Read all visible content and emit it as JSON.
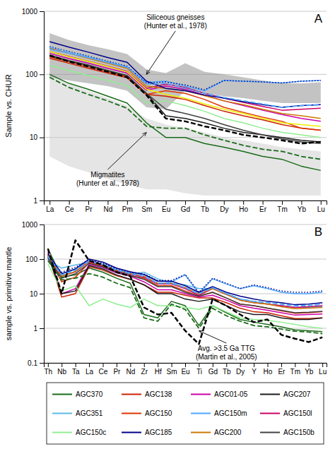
{
  "chart_data": [
    {
      "type": "line",
      "title": "A",
      "ylabel": "Sample vs. CHUR",
      "categories": [
        "La",
        "Ce",
        "Pr",
        "Nd",
        "Pm",
        "Sm",
        "Eu",
        "Gd",
        "Tb",
        "Dy",
        "Ho",
        "Er",
        "Tm",
        "Yb",
        "Lu"
      ],
      "log": "y",
      "ylim": [
        1,
        1000
      ],
      "yticks": [
        1,
        10,
        100,
        1000
      ],
      "grid": "y",
      "annotations": [
        {
          "text": "Siliceous gneisses\n(Hunter et al., 1978)"
        },
        {
          "text": "Migmatites\n(Hunter et al., 1978)"
        }
      ],
      "series": [
        {
          "type": "area",
          "color": "#888888",
          "values": [
            450,
            350,
            290,
            250,
            210,
            120,
            105,
            150,
            110,
            100,
            90,
            80,
            72,
            72,
            75
          ],
          "lower": [
            90,
            80,
            72,
            65,
            55,
            30,
            28,
            55,
            50,
            45,
            42,
            38,
            35,
            35,
            35
          ]
        },
        {
          "type": "area",
          "color": "#cccccc",
          "values": [
            100,
            70,
            55,
            42,
            32,
            20,
            16,
            14,
            12,
            10,
            9,
            8,
            7,
            6.5,
            6
          ],
          "lower": [
            5,
            3.5,
            2.8,
            2.2,
            1.8,
            1.5,
            1.5,
            1.3,
            1.2,
            1.2,
            1.2,
            1.2,
            1.2,
            1.2,
            1.2
          ]
        },
        {
          "type": "line",
          "color": "#1a6b1a",
          "line_style": "solid",
          "values": [
            100,
            72,
            58,
            45,
            35,
            17,
            10,
            10,
            8,
            7,
            6,
            5,
            4.5,
            3.5,
            3
          ]
        },
        {
          "type": "line",
          "color": "#1a1a1a",
          "line_style": "solid",
          "values": [
            200,
            165,
            140,
            115,
            95,
            50,
            22,
            20,
            17,
            14,
            12,
            11,
            10,
            9,
            8.5
          ]
        },
        {
          "type": "line",
          "color": "#cc2200",
          "line_style": "solid",
          "values": [
            180,
            150,
            125,
            105,
            88,
            48,
            45,
            40,
            32,
            26,
            22,
            19,
            16,
            14,
            13
          ]
        },
        {
          "type": "line",
          "color": "#dd3300",
          "line_style": "solid",
          "values": [
            190,
            158,
            132,
            110,
            92,
            48,
            55,
            50,
            40,
            30,
            25,
            21,
            18,
            14,
            13
          ]
        },
        {
          "type": "line",
          "color": "#cc00aa",
          "line_style": "solid",
          "values": [
            215,
            178,
            150,
            125,
            105,
            56,
            65,
            58,
            47,
            38,
            32,
            27,
            23,
            20,
            18
          ]
        },
        {
          "type": "line",
          "color": "#cc0066",
          "line_style": "solid",
          "values": [
            230,
            192,
            162,
            135,
            112,
            60,
            70,
            62,
            50,
            42,
            36,
            31,
            27,
            28,
            29
          ]
        },
        {
          "type": "line",
          "color": "#cc7700",
          "line_style": "solid",
          "values": [
            260,
            215,
            180,
            150,
            125,
            65,
            60,
            55,
            46,
            38,
            33,
            28,
            24,
            22,
            20
          ]
        },
        {
          "type": "line",
          "color": "#90ee90",
          "line_style": "solid",
          "values": [
            140,
            115,
            96,
            80,
            67,
            35,
            38,
            32,
            26,
            20,
            17,
            14,
            12,
            11,
            10
          ]
        },
        {
          "type": "line",
          "color": "#404040",
          "line_style": "solid",
          "values": [
            195,
            163,
            138,
            115,
            96,
            50,
            28,
            24,
            20,
            16,
            13,
            11,
            9.5,
            8.5,
            8
          ]
        },
        {
          "type": "line",
          "color": "#4da6ff",
          "line_style": "solid",
          "values": [
            250,
            215,
            185,
            155,
            130,
            75,
            78,
            65,
            55,
            80,
            78,
            76,
            73,
            78,
            80
          ]
        },
        {
          "type": "line",
          "color": "#00008b",
          "line_style": "solid",
          "values": [
            330,
            270,
            225,
            185,
            155,
            78,
            60,
            55,
            47,
            42,
            37,
            33,
            30,
            32,
            33
          ]
        },
        {
          "type": "line",
          "color": "#eeee00",
          "line_style": "solid",
          "values": [
            230,
            190,
            160,
            133,
            110,
            58,
            48,
            42,
            34,
            28,
            24,
            20,
            17,
            16,
            15
          ]
        },
        {
          "type": "line",
          "color": "#000000",
          "line_style": "dashed",
          "values": [
            200,
            160,
            133,
            110,
            90,
            47,
            20,
            18,
            15,
            13,
            11,
            10,
            9,
            8,
            8.5
          ]
        },
        {
          "type": "line",
          "color": "#1a6b1a",
          "line_style": "dashed",
          "values": [
            90,
            62,
            48,
            38,
            29,
            15,
            14,
            14,
            11,
            9,
            7.5,
            6.5,
            6,
            5,
            4.5
          ]
        },
        {
          "type": "line",
          "color": "#00008b",
          "line_style": "dotted",
          "values": [
            275,
            230,
            195,
            162,
            135,
            72,
            76,
            68,
            57,
            80,
            78,
            76,
            73,
            78,
            80
          ]
        },
        {
          "type": "line",
          "color": "#4da6ff",
          "line_style": "dashed",
          "values": [
            270,
            225,
            190,
            158,
            132,
            70,
            72,
            60,
            50,
            43,
            38,
            34,
            30,
            32,
            33
          ]
        }
      ]
    },
    {
      "type": "line",
      "title": "B",
      "ylabel": "sample vs. primitive mantle",
      "categories": [
        "Th",
        "Nb",
        "Ta",
        "La",
        "Ce",
        "Pr",
        "Nd",
        "Zr",
        "Hf",
        "Sm",
        "Eu",
        "Ti",
        "Gd",
        "Tb",
        "Dy",
        "Y",
        "Ho",
        "Er",
        "Tm",
        "Yb",
        "Lu"
      ],
      "log": "y",
      "ylim": [
        0.1,
        1000
      ],
      "yticks": [
        0.1,
        1,
        10,
        100,
        1000
      ],
      "grid": "y",
      "legend": "bottom",
      "annotations": [
        {
          "text": "Avg. >3.5 Ga TTG\n(Martin et al., 2005)"
        }
      ],
      "series": [
        {
          "name": "AGC370",
          "type": "line",
          "color": "#1a6b1a",
          "line_style": "solid",
          "values": [
            200,
            30,
            35,
            55,
            42,
            28,
            20,
            2.5,
            2,
            6,
            4.5,
            1.2,
            4.5,
            2.8,
            1.8,
            1.5,
            1.3,
            1.1,
            0.9,
            0.85,
            0.8
          ]
        },
        {
          "name": "AGC138",
          "type": "line",
          "color": "#cc2200",
          "line_style": "solid",
          "values": [
            145,
            8,
            10,
            60,
            48,
            33,
            26,
            18,
            11,
            11,
            9,
            7.5,
            7.5,
            5.5,
            3.8,
            3,
            2.8,
            2.3,
            1.9,
            1.9,
            2
          ]
        },
        {
          "name": "AGC01-05",
          "type": "line",
          "color": "#cc00aa",
          "line_style": "solid",
          "values": [
            165,
            10,
            14,
            70,
            57,
            40,
            32,
            22,
            13,
            13,
            10,
            8,
            9,
            6.5,
            4.5,
            3.8,
            3.3,
            2.8,
            2.4,
            2.5,
            2.6
          ]
        },
        {
          "name": "AGC207",
          "type": "line",
          "color": "#1a1a1a",
          "line_style": "solid",
          "values": [
            130,
            10,
            12,
            65,
            52,
            35,
            26,
            18,
            10,
            10,
            7,
            6,
            7,
            4.5,
            3,
            2.5,
            2.5,
            2,
            1.8,
            1.8,
            2
          ]
        },
        {
          "name": "AGC351",
          "type": "line",
          "color": "#5eb8e8",
          "line_style": "solid",
          "values": [
            90,
            55,
            68,
            80,
            65,
            45,
            37,
            42,
            27,
            20,
            18,
            14,
            14,
            10,
            7,
            6,
            5,
            4.5,
            4,
            4,
            4.2
          ]
        },
        {
          "name": "AGC150",
          "type": "line",
          "color": "#dd3300",
          "line_style": "solid",
          "values": [
            130,
            22,
            30,
            78,
            63,
            43,
            33,
            28,
            17,
            17,
            12,
            8.5,
            11,
            7.5,
            5,
            4.5,
            3.8,
            3.2,
            2.7,
            2.8,
            3
          ]
        },
        {
          "name": "AGC150m",
          "type": "line",
          "color": "#4da6ff",
          "line_style": "solid",
          "values": [
            110,
            38,
            52,
            90,
            72,
            50,
            40,
            36,
            23,
            22,
            35,
            10,
            27,
            19,
            14,
            17,
            14,
            11,
            10,
            10,
            11
          ]
        },
        {
          "name": "AGC150l",
          "type": "line",
          "color": "#cc0066",
          "line_style": "solid",
          "values": [
            115,
            32,
            43,
            85,
            68,
            46,
            37,
            30,
            19,
            19,
            14,
            9,
            14,
            9.5,
            6.5,
            5.5,
            5,
            4.5,
            4,
            4.2,
            4.5
          ]
        },
        {
          "name": "AGC150c",
          "type": "line",
          "color": "#90ee90",
          "line_style": "solid",
          "values": [
            72,
            12,
            17,
            4.5,
            7,
            5,
            4,
            7,
            4.5,
            4.5,
            4,
            3.5,
            4.5,
            3,
            2,
            1.8,
            1.7,
            1.5,
            1.3,
            1.1,
            1
          ]
        },
        {
          "name": "AGC185",
          "type": "line",
          "color": "#00008b",
          "line_style": "solid",
          "values": [
            145,
            38,
            52,
            100,
            82,
            55,
            43,
            36,
            23,
            23,
            17,
            11,
            16,
            11,
            8.5,
            7,
            6,
            5.5,
            4.8,
            5,
            5.5
          ]
        },
        {
          "name": "AGC200",
          "type": "line",
          "color": "#cc7700",
          "line_style": "solid",
          "values": [
            125,
            32,
            44,
            88,
            70,
            48,
            38,
            32,
            20,
            20,
            15,
            10,
            14,
            9.5,
            6.5,
            5.5,
            5,
            4.2,
            3.7,
            3.8,
            4
          ]
        },
        {
          "name": "AGC150b",
          "type": "line",
          "color": "#404040",
          "line_style": "solid",
          "values": [
            105,
            28,
            38,
            75,
            60,
            42,
            34,
            26,
            16,
            16,
            11,
            8.5,
            11,
            7.5,
            5,
            4.5,
            3.8,
            3.3,
            2.8,
            2.9,
            3.1
          ]
        },
        {
          "type": "line",
          "color": "#1a6b1a",
          "line_style": "dashed",
          "values": [
            90,
            25,
            28,
            38,
            30,
            20,
            15,
            2,
            1.6,
            5,
            3.5,
            1,
            3.8,
            2.3,
            1.6,
            1.2,
            1.1,
            0.95,
            0.82,
            0.78,
            0.7
          ]
        },
        {
          "type": "line",
          "color": "#00008b",
          "line_style": "dotted",
          "values": [
            115,
            42,
            58,
            95,
            76,
            52,
            42,
            37,
            24,
            24,
            36,
            11,
            28,
            20,
            14,
            18,
            15,
            12,
            11,
            11,
            12
          ]
        },
        {
          "type": "line",
          "color": "#4da6ff",
          "line_style": "dashed",
          "values": [
            120,
            35,
            48,
            88,
            70,
            48,
            38,
            32,
            20,
            20,
            15,
            10,
            15,
            10,
            7,
            6,
            5.5,
            5,
            4.5,
            4.5,
            5
          ]
        },
        {
          "type": "line",
          "color": "#000000",
          "line_style": "dashed",
          "values": [
            200,
            10,
            350,
            90,
            68,
            42,
            32,
            4,
            2.5,
            2.8,
            0.85,
            0.35,
            7,
            4.5,
            2.5,
            1.5,
            1.8,
            0.65,
            0.5,
            0.4,
            0.55
          ]
        }
      ]
    }
  ]
}
